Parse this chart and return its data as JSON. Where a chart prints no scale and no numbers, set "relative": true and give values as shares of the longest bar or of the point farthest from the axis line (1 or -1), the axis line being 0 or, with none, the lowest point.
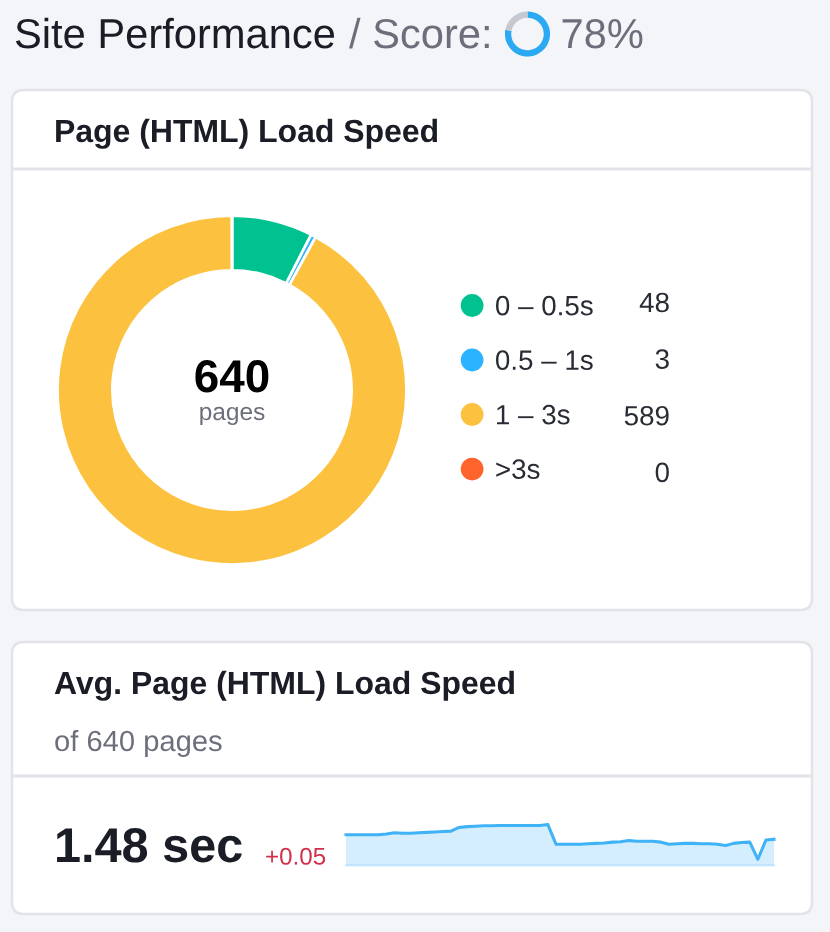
{
  "chart_data": [
    {
      "type": "other",
      "title": "Site Performance",
      "subtitle": "/ Score:",
      "values": [
        78
      ],
      "value_labels": [
        "78%"
      ],
      "color": "#2ba9f3"
    },
    {
      "type": "donut",
      "title": "Page (HTML) Load Speed",
      "categories": [
        "0 – 0.5s",
        "0.5 – 1s",
        "1 – 3s",
        ">3s"
      ],
      "values": [
        48,
        3,
        589,
        0
      ],
      "colors": [
        "#00c291",
        "#2bb3ff",
        "#fcc13f",
        "#ff642d"
      ],
      "legend": "right",
      "value_labels": [
        "48",
        "3",
        "589",
        "0"
      ],
      "annotations": [
        "640",
        "pages"
      ]
    },
    {
      "type": "area",
      "title": "Avg. Page (HTML) Load Speed",
      "subtitle": "of 640 pages",
      "relative": true,
      "annotations": [
        "1.48 sec",
        "+0.05"
      ],
      "categories": [
        null,
        null,
        null,
        null,
        null,
        null,
        null,
        null,
        null,
        null,
        null,
        null,
        null,
        null,
        null,
        null,
        null,
        null,
        null,
        null,
        null,
        null,
        null,
        null,
        null,
        null,
        null,
        null,
        null,
        null,
        null,
        null,
        null,
        null,
        null,
        null,
        null,
        null,
        null,
        null,
        null,
        null,
        null,
        null,
        null,
        null,
        null,
        null,
        null,
        null,
        null,
        null,
        null,
        null
      ],
      "series": [
        {
          "color": "#3fb3f5",
          "values": [
            0.75,
            0.75,
            0.75,
            0.75,
            0.75,
            0.77,
            0.8,
            0.79,
            0.79,
            0.8,
            0.81,
            0.82,
            0.83,
            0.84,
            0.93,
            0.95,
            0.96,
            0.97,
            0.97,
            0.98,
            0.98,
            0.98,
            0.98,
            0.98,
            0.98,
            1.0,
            0.52,
            0.52,
            0.52,
            0.52,
            0.53,
            0.54,
            0.55,
            0.57,
            0.58,
            0.61,
            0.59,
            0.59,
            0.59,
            0.57,
            0.52,
            0.53,
            0.54,
            0.54,
            0.53,
            0.53,
            0.52,
            0.49,
            0.54,
            0.56,
            0.57,
            0.15,
            0.62,
            0.64
          ]
        }
      ]
    }
  ]
}
